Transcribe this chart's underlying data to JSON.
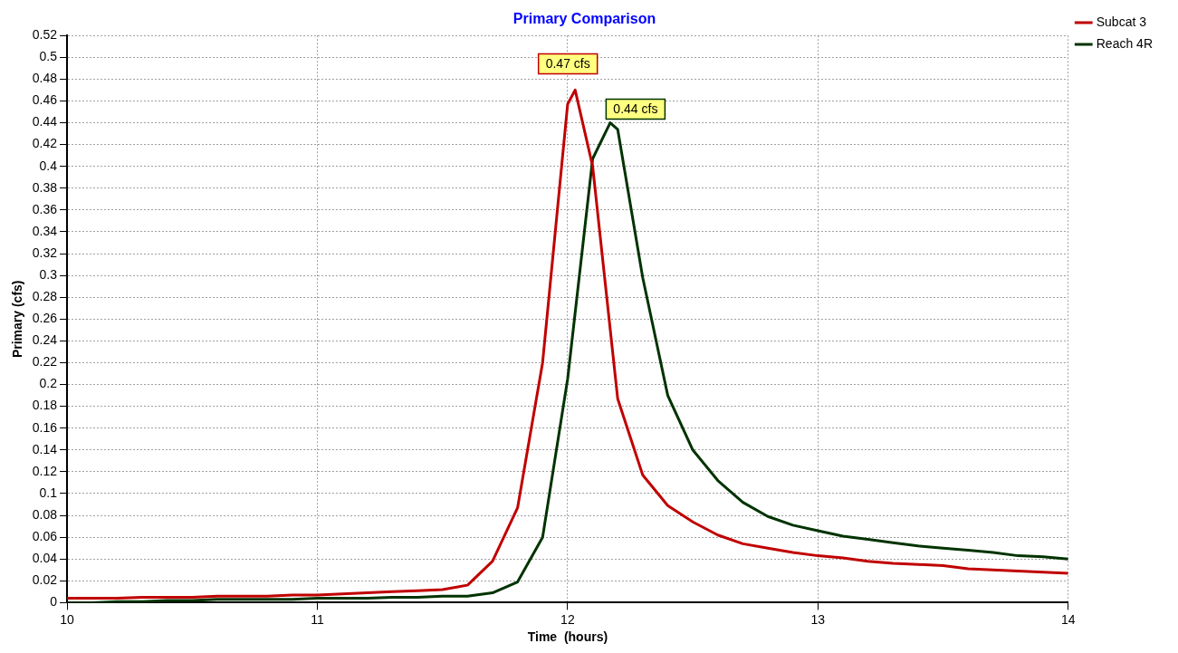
{
  "chart_data": {
    "type": "line",
    "title": "Primary Comparison",
    "xlabel": "Time  (hours)",
    "ylabel": "Primary (cfs)",
    "xlim": [
      10,
      14
    ],
    "xticks": [
      10,
      11,
      12,
      13,
      14
    ],
    "ylim": [
      0,
      0.52
    ],
    "yticks": [
      0,
      0.02,
      0.04,
      0.06,
      0.08,
      0.1,
      0.12,
      0.14,
      0.16,
      0.18,
      0.2,
      0.22,
      0.24,
      0.26,
      0.28,
      0.3,
      0.32,
      0.34,
      0.36,
      0.38,
      0.4,
      0.42,
      0.44,
      0.46,
      0.48,
      0.5,
      0.52
    ],
    "grid": true,
    "legend": "top right",
    "marker": "none",
    "line_style": "solid",
    "annotations": [
      {
        "text": "0.47 cfs",
        "x": 12.03,
        "y": 0.47
      },
      {
        "text": "0.44 cfs",
        "x": 12.17,
        "y": 0.44
      }
    ],
    "series": [
      {
        "name": "Subcat 3",
        "color": "#c00000",
        "x": [
          10,
          10.1,
          10.2,
          10.3,
          10.4,
          10.5,
          10.6,
          10.7,
          10.8,
          10.9,
          11,
          11.1,
          11.2,
          11.3,
          11.4,
          11.5,
          11.6,
          11.7,
          11.8,
          11.9,
          12,
          12.03,
          12.1,
          12.2,
          12.3,
          12.4,
          12.5,
          12.6,
          12.7,
          12.8,
          12.9,
          13,
          13.1,
          13.2,
          13.3,
          13.4,
          13.5,
          13.6,
          13.7,
          13.8,
          13.9,
          14
        ],
        "values": [
          0.004,
          0.004,
          0.004,
          0.005,
          0.005,
          0.005,
          0.006,
          0.006,
          0.006,
          0.007,
          0.007,
          0.008,
          0.009,
          0.01,
          0.011,
          0.012,
          0.016,
          0.038,
          0.087,
          0.22,
          0.457,
          0.47,
          0.4,
          0.187,
          0.117,
          0.089,
          0.074,
          0.062,
          0.054,
          0.05,
          0.046,
          0.043,
          0.041,
          0.038,
          0.036,
          0.035,
          0.034,
          0.031,
          0.03,
          0.029,
          0.028,
          0.027
        ]
      },
      {
        "name": "Reach 4R",
        "color": "#003300",
        "x": [
          10,
          10.1,
          10.2,
          10.3,
          10.4,
          10.5,
          10.6,
          10.7,
          10.8,
          10.9,
          11,
          11.1,
          11.2,
          11.3,
          11.4,
          11.5,
          11.6,
          11.7,
          11.8,
          11.9,
          12,
          12.1,
          12.17,
          12.2,
          12.3,
          12.4,
          12.5,
          12.6,
          12.7,
          12.8,
          12.9,
          13,
          13.1,
          13.2,
          13.3,
          13.4,
          13.5,
          13.6,
          13.7,
          13.8,
          13.9,
          14
        ],
        "values": [
          0,
          0,
          0.001,
          0.001,
          0.002,
          0.002,
          0.003,
          0.003,
          0.003,
          0.003,
          0.004,
          0.004,
          0.004,
          0.005,
          0.005,
          0.006,
          0.006,
          0.009,
          0.019,
          0.06,
          0.205,
          0.407,
          0.44,
          0.434,
          0.298,
          0.19,
          0.14,
          0.112,
          0.092,
          0.079,
          0.071,
          0.066,
          0.061,
          0.058,
          0.055,
          0.052,
          0.05,
          0.048,
          0.046,
          0.043,
          0.042,
          0.04
        ]
      }
    ]
  }
}
